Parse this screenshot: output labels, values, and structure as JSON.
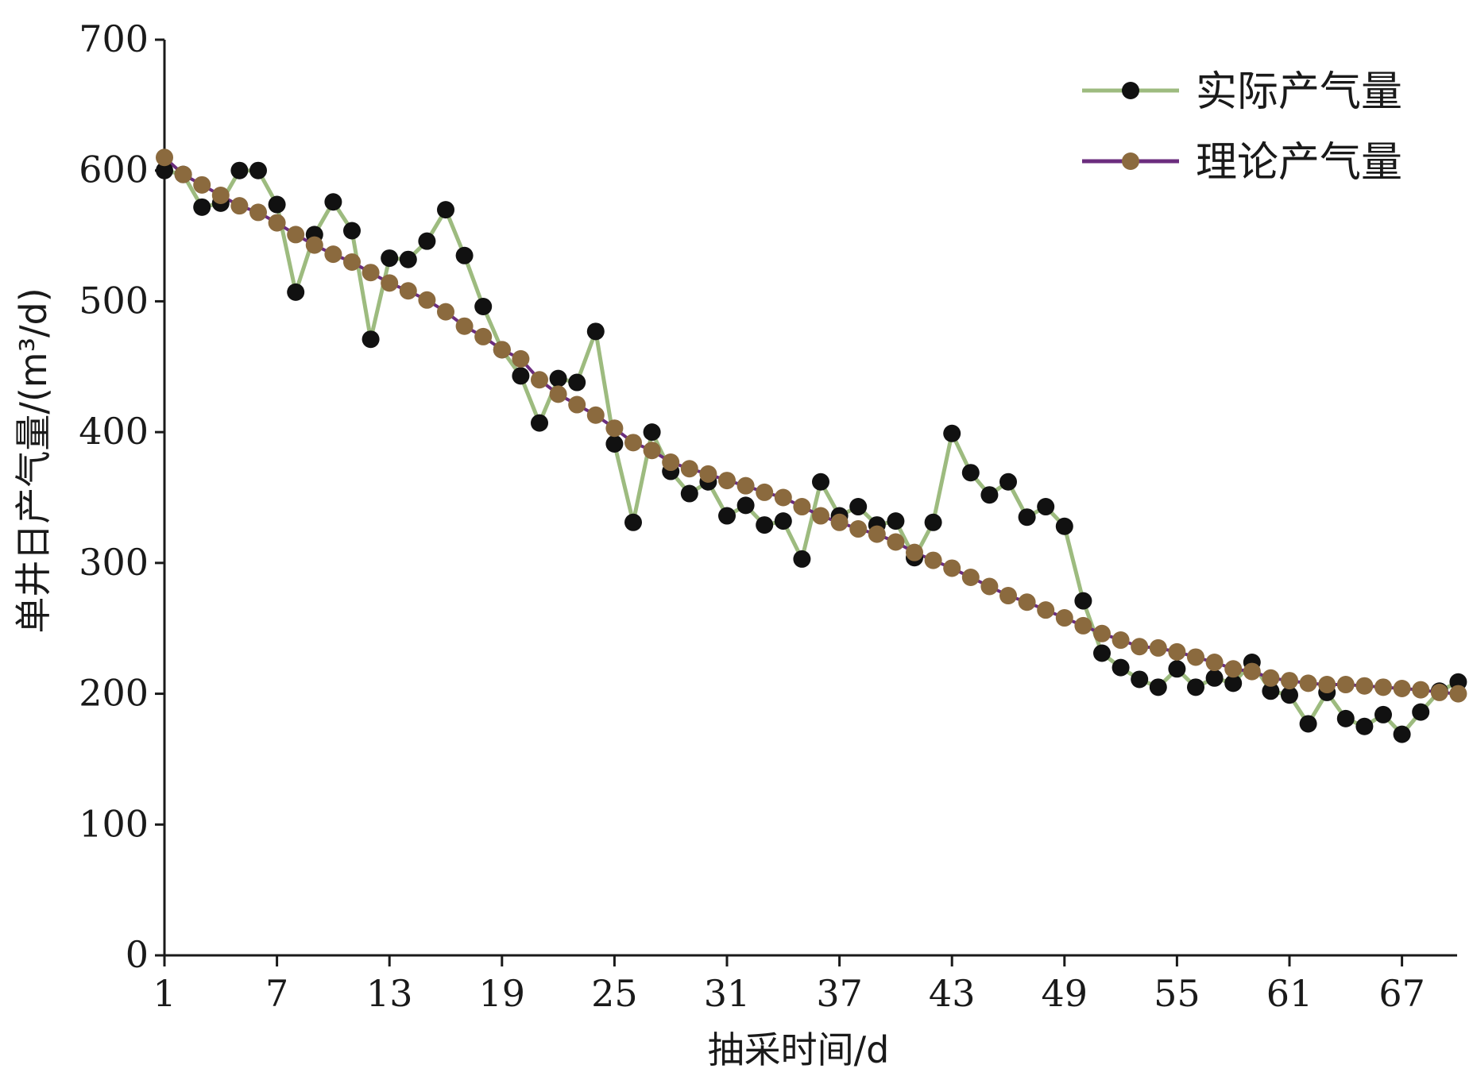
{
  "chart_data": {
    "type": "line",
    "xlabel": "抽采时间/d",
    "ylabel": "单井日产气量/(m³/d)",
    "ylim": [
      0,
      700
    ],
    "xlim": [
      1,
      70
    ],
    "x_ticks": [
      "1",
      "7",
      "13",
      "19",
      "25",
      "31",
      "37",
      "43",
      "49",
      "55",
      "61",
      "67"
    ],
    "y_ticks": [
      "0",
      "100",
      "200",
      "300",
      "400",
      "500",
      "600",
      "700"
    ],
    "legend_position": "top-right",
    "x": [
      1,
      2,
      3,
      4,
      5,
      6,
      7,
      8,
      9,
      10,
      11,
      12,
      13,
      14,
      15,
      16,
      17,
      18,
      19,
      20,
      21,
      22,
      23,
      24,
      25,
      26,
      27,
      28,
      29,
      30,
      31,
      32,
      33,
      34,
      35,
      36,
      37,
      38,
      39,
      40,
      41,
      42,
      43,
      44,
      45,
      46,
      47,
      48,
      49,
      50,
      51,
      52,
      53,
      54,
      55,
      56,
      57,
      58,
      59,
      60,
      61,
      62,
      63,
      64,
      65,
      66,
      67,
      68,
      69,
      70
    ],
    "series": [
      {
        "name": "实际产气量",
        "line_color": "#9dbb7f",
        "marker_color": "#111111",
        "values": [
          600,
          597,
          572,
          575,
          600,
          600,
          574,
          507,
          551,
          576,
          554,
          471,
          533,
          532,
          546,
          570,
          535,
          496,
          463,
          443,
          407,
          441,
          438,
          477,
          391,
          331,
          400,
          370,
          353,
          362,
          336,
          344,
          329,
          332,
          303,
          362,
          336,
          343,
          329,
          332,
          304,
          331,
          399,
          369,
          352,
          362,
          335,
          343,
          328,
          271,
          231,
          220,
          211,
          205,
          219,
          205,
          212,
          208,
          224,
          202,
          199,
          177,
          201,
          181,
          175,
          184,
          169,
          186,
          202,
          209
        ]
      },
      {
        "name": "理论产气量",
        "line_color": "#6b2d7e",
        "marker_color": "#8b6a3e",
        "values": [
          610,
          597,
          589,
          581,
          573,
          568,
          560,
          551,
          543,
          536,
          530,
          522,
          514,
          508,
          501,
          492,
          481,
          473,
          463,
          456,
          440,
          429,
          421,
          413,
          403,
          392,
          386,
          377,
          372,
          368,
          363,
          359,
          354,
          350,
          343,
          336,
          331,
          326,
          322,
          316,
          308,
          302,
          296,
          289,
          282,
          275,
          270,
          264,
          258,
          252,
          246,
          241,
          236,
          235,
          232,
          228,
          224,
          219,
          217,
          212,
          210,
          208,
          207,
          207,
          206,
          205,
          204,
          203,
          201,
          200
        ]
      }
    ]
  }
}
